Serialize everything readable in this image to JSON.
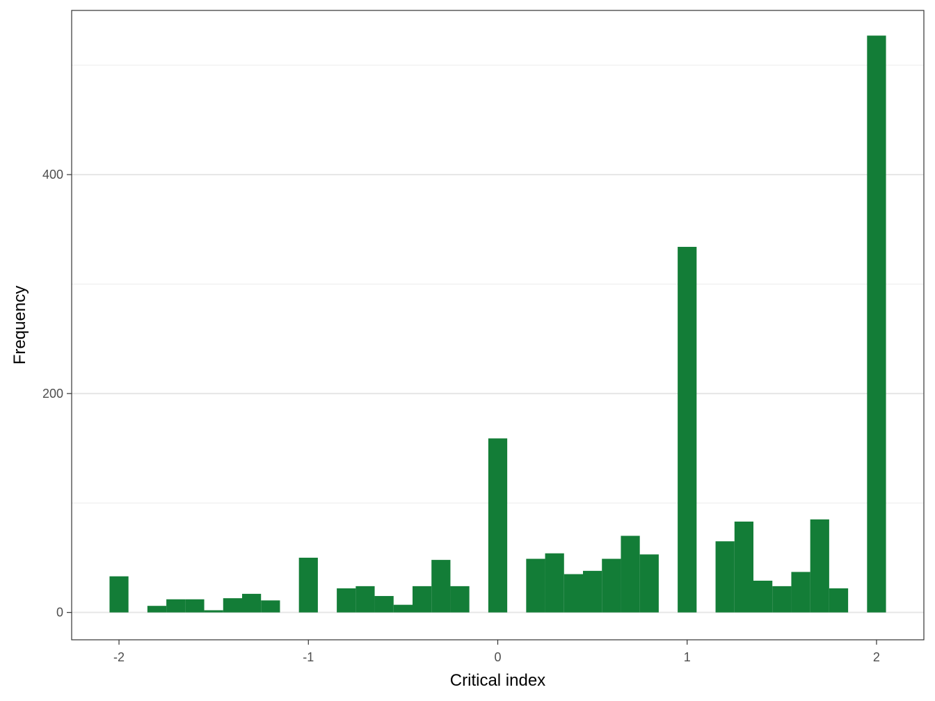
{
  "chart_data": {
    "type": "bar",
    "xlabel": "Critical index",
    "ylabel": "Frequency",
    "xlim": [
      -2.25,
      2.25
    ],
    "ylim": [
      -25,
      550
    ],
    "x_ticks": [
      -2,
      -1,
      0,
      1,
      2
    ],
    "x_tick_labels": [
      "-2",
      "-1",
      "0",
      "1",
      "2"
    ],
    "y_ticks": [
      0,
      200,
      400
    ],
    "y_tick_labels": [
      "0",
      "200",
      "400"
    ],
    "y_minor_gridlines": [
      100,
      300,
      500
    ],
    "grid": true,
    "bin_width": 0.1,
    "bar_color": "#137d37",
    "bars": [
      {
        "x": -2.0,
        "count": 33
      },
      {
        "x": -1.9,
        "count": 0
      },
      {
        "x": -1.8,
        "count": 6
      },
      {
        "x": -1.7,
        "count": 12
      },
      {
        "x": -1.6,
        "count": 12
      },
      {
        "x": -1.5,
        "count": 2
      },
      {
        "x": -1.4,
        "count": 13
      },
      {
        "x": -1.3,
        "count": 17
      },
      {
        "x": -1.2,
        "count": 11
      },
      {
        "x": -1.1,
        "count": 0
      },
      {
        "x": -1.0,
        "count": 50
      },
      {
        "x": -0.9,
        "count": 0
      },
      {
        "x": -0.8,
        "count": 22
      },
      {
        "x": -0.7,
        "count": 24
      },
      {
        "x": -0.6,
        "count": 15
      },
      {
        "x": -0.5,
        "count": 7
      },
      {
        "x": -0.4,
        "count": 24
      },
      {
        "x": -0.3,
        "count": 48
      },
      {
        "x": -0.2,
        "count": 24
      },
      {
        "x": -0.1,
        "count": 0
      },
      {
        "x": 0.0,
        "count": 159
      },
      {
        "x": 0.1,
        "count": 0
      },
      {
        "x": 0.2,
        "count": 49
      },
      {
        "x": 0.3,
        "count": 54
      },
      {
        "x": 0.4,
        "count": 35
      },
      {
        "x": 0.5,
        "count": 38
      },
      {
        "x": 0.6,
        "count": 49
      },
      {
        "x": 0.7,
        "count": 70
      },
      {
        "x": 0.8,
        "count": 53
      },
      {
        "x": 0.9,
        "count": 0
      },
      {
        "x": 1.0,
        "count": 334
      },
      {
        "x": 1.1,
        "count": 0
      },
      {
        "x": 1.2,
        "count": 65
      },
      {
        "x": 1.3,
        "count": 83
      },
      {
        "x": 1.4,
        "count": 29
      },
      {
        "x": 1.5,
        "count": 24
      },
      {
        "x": 1.6,
        "count": 37
      },
      {
        "x": 1.7,
        "count": 85
      },
      {
        "x": 1.8,
        "count": 22
      },
      {
        "x": 1.9,
        "count": 0
      },
      {
        "x": 2.0,
        "count": 527
      }
    ]
  }
}
